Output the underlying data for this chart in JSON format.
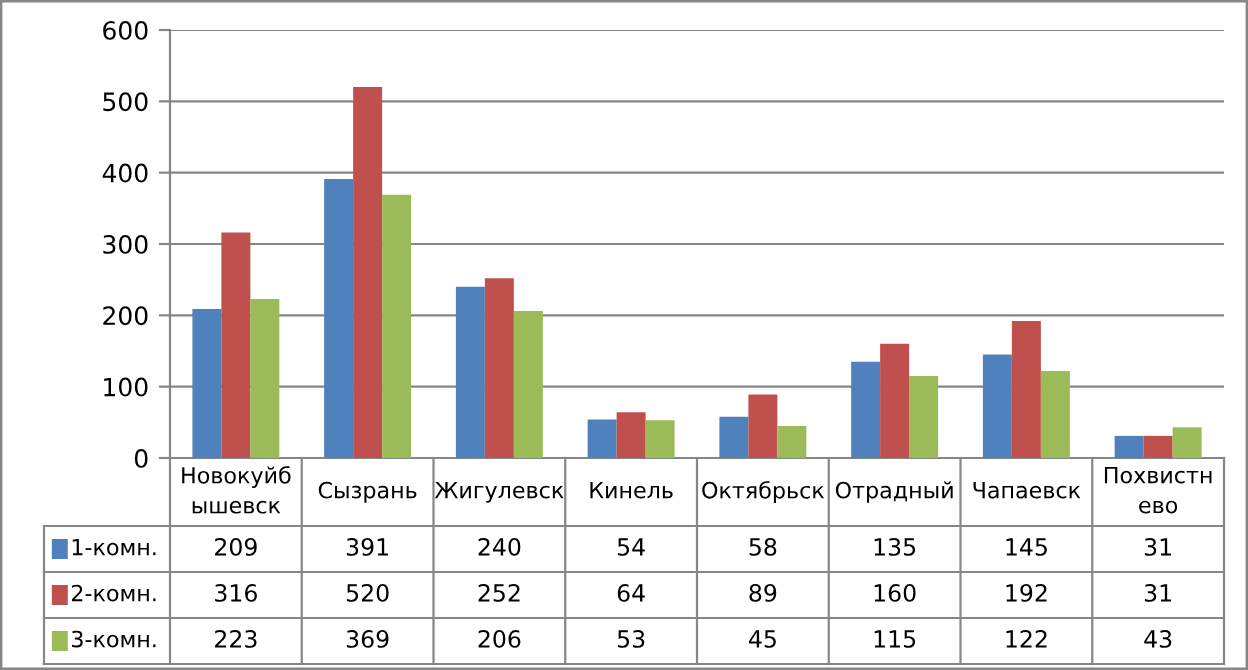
{
  "chart_data": {
    "type": "bar",
    "categories": [
      "Новокуйбышевск",
      "Сызрань",
      "Жигулевск",
      "Кинель",
      "Октябрьск",
      "Отрадный",
      "Чапаевск",
      "Похвистнево"
    ],
    "series": [
      {
        "name": "1-комн.",
        "color": "#4f81bd",
        "values": [
          209,
          391,
          240,
          54,
          58,
          135,
          145,
          31
        ]
      },
      {
        "name": "2-комн.",
        "color": "#c0504d",
        "values": [
          316,
          520,
          252,
          64,
          89,
          160,
          192,
          31
        ]
      },
      {
        "name": "3-комн.",
        "color": "#9bbb59",
        "values": [
          223,
          369,
          206,
          53,
          45,
          115,
          122,
          43
        ]
      }
    ],
    "ylim": [
      0,
      600
    ],
    "yticks": [
      0,
      100,
      200,
      300,
      400,
      500,
      600
    ],
    "grid": "y",
    "data_labels": true,
    "legend": "bottom left"
  }
}
